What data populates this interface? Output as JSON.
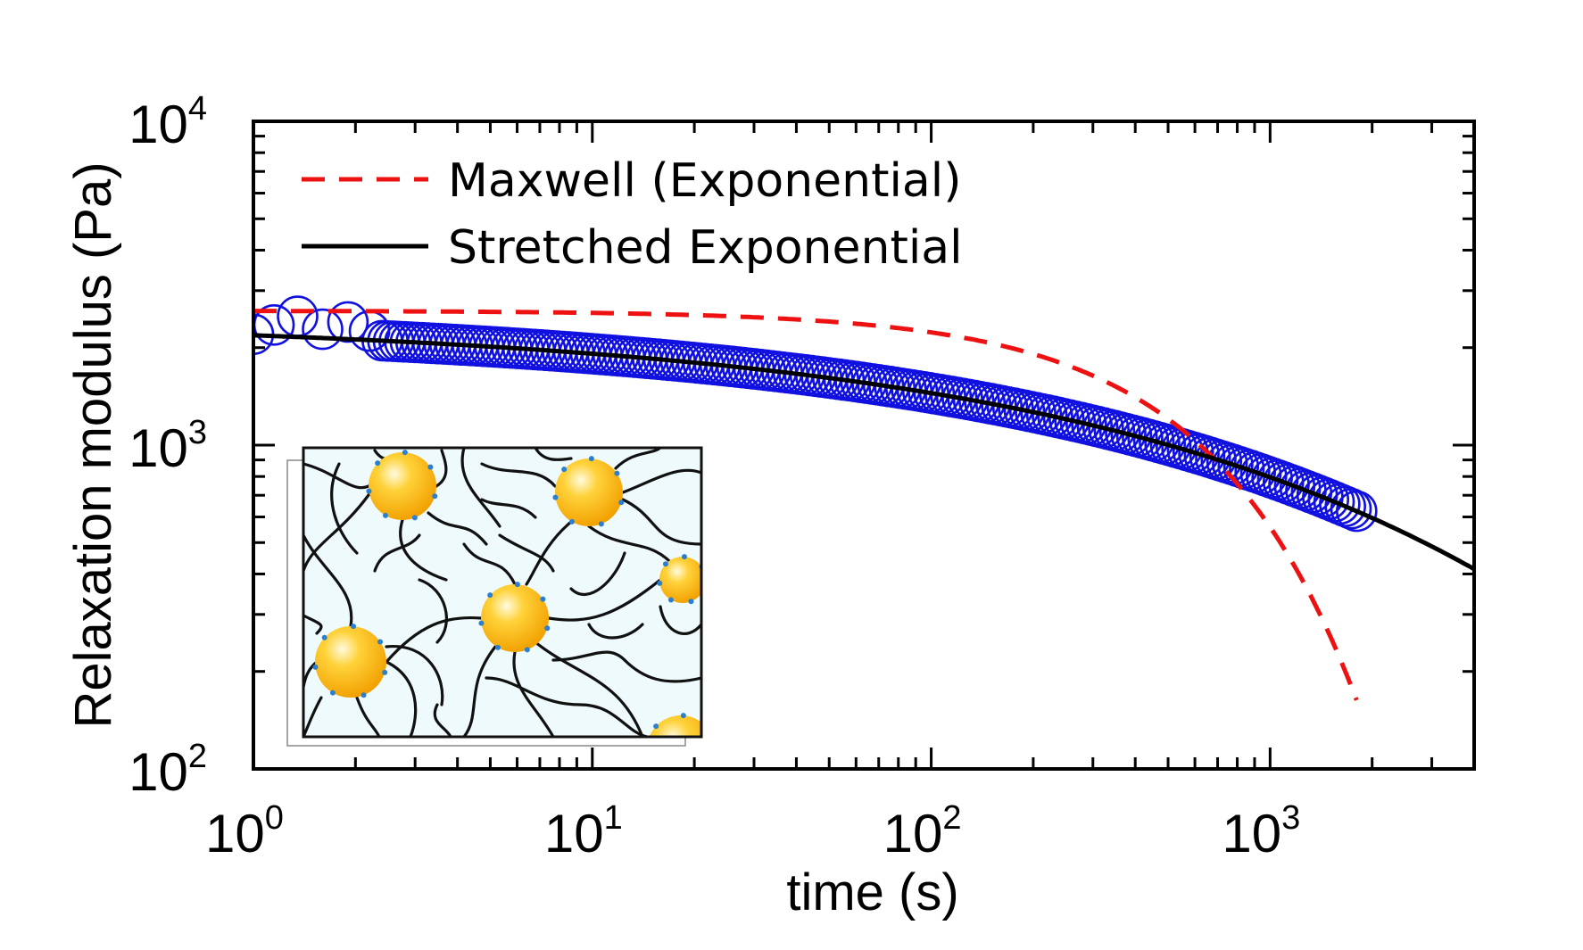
{
  "chart_data": {
    "type": "scatter",
    "xlabel": "time (s)",
    "ylabel": "Relaxation modulus (Pa)",
    "x_scale": "log",
    "y_scale": "log",
    "xlim": [
      1,
      4000
    ],
    "ylim": [
      100,
      10000
    ],
    "x_ticks": [
      {
        "base": "10",
        "exp": "0",
        "value": 1
      },
      {
        "base": "10",
        "exp": "1",
        "value": 10
      },
      {
        "base": "10",
        "exp": "2",
        "value": 100
      },
      {
        "base": "10",
        "exp": "3",
        "value": 1000
      }
    ],
    "y_ticks": [
      {
        "base": "10",
        "exp": "2",
        "value": 100
      },
      {
        "base": "10",
        "exp": "3",
        "value": 1000
      },
      {
        "base": "10",
        "exp": "4",
        "value": 10000
      }
    ],
    "legend_position": "top-left",
    "colors": {
      "data": "#1010e0",
      "maxwell": "#ee1111",
      "stretched": "#000000"
    },
    "series": [
      {
        "name": "",
        "kind": "scatter",
        "marker": "open-circle",
        "x_range": [
          1,
          1800
        ],
        "points_per_decade": 60,
        "model": "stretched_exponential",
        "G0": 2450,
        "tau": 700,
        "beta": 0.33,
        "early_points": [
          [
            1.0,
            2200
          ],
          [
            1.15,
            2350
          ],
          [
            1.35,
            2500
          ],
          [
            1.6,
            2280
          ],
          [
            1.9,
            2400
          ],
          [
            2.2,
            2250
          ]
        ]
      },
      {
        "name": "Maxwell (Exponential)",
        "kind": "line",
        "style": "dashed",
        "model": "exponential",
        "G0": 2600,
        "tau": 650,
        "x_range": [
          1,
          1800
        ]
      },
      {
        "name": "Stretched Exponential",
        "kind": "line",
        "style": "solid",
        "model": "stretched_exponential",
        "G0": 2450,
        "tau": 700,
        "beta": 0.33,
        "x_range": [
          1,
          4000
        ]
      }
    ]
  }
}
